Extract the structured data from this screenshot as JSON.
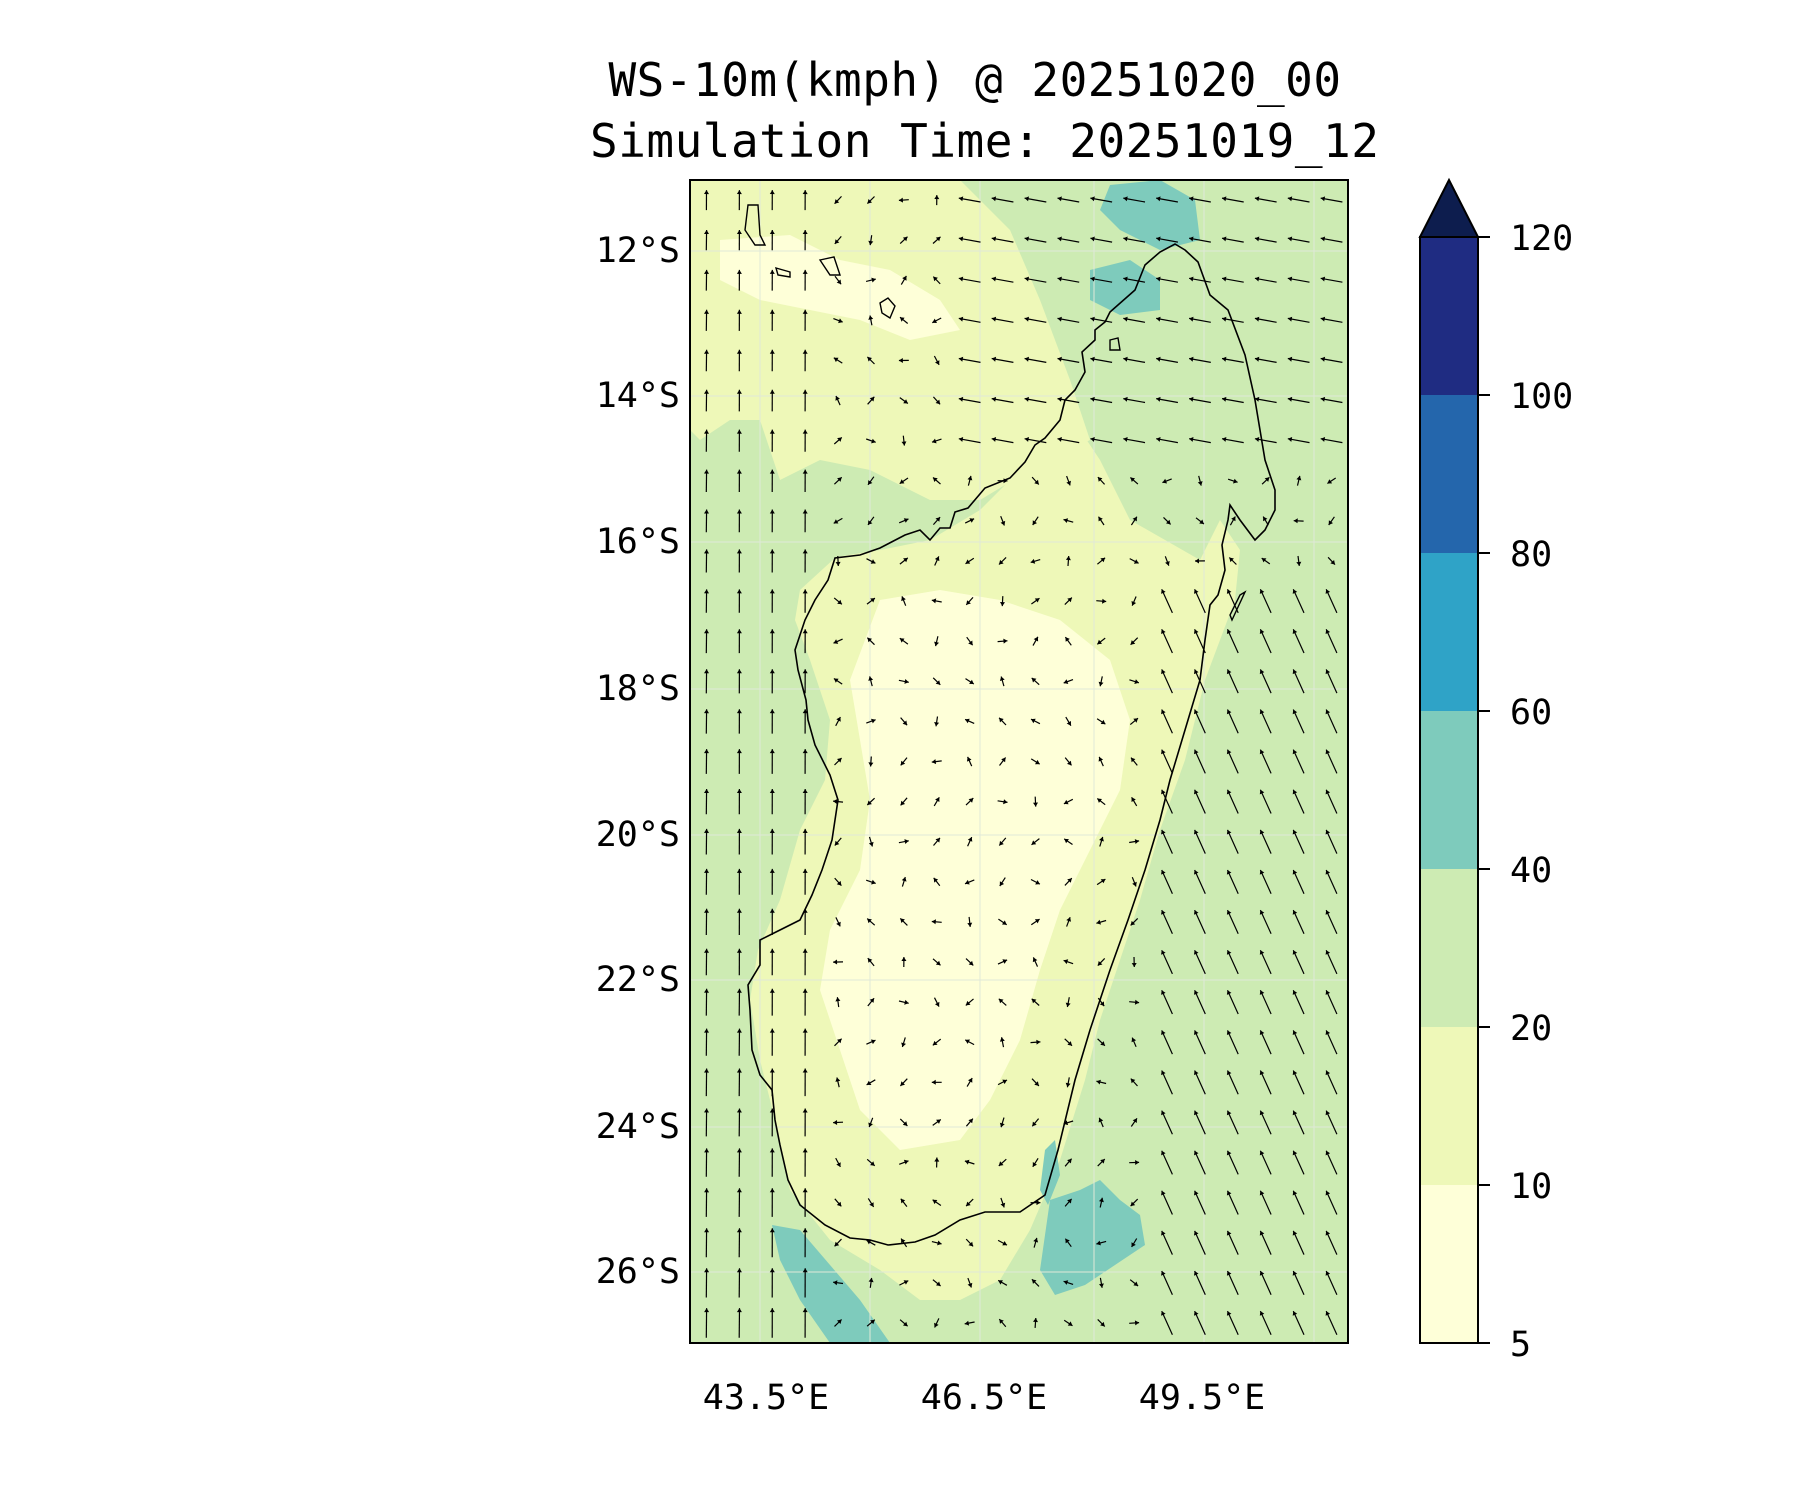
{
  "title": {
    "line1": "WS-10m(kmph) @ 20251020_00",
    "line2": "Simulation Time: 20251019_12"
  },
  "map": {
    "lat_ticks": [
      "12°S",
      "14°S",
      "16°S",
      "18°S",
      "20°S",
      "22°S",
      "24°S",
      "26°S"
    ],
    "lon_ticks": [
      "43.5°E",
      "46.5°E",
      "49.5°E"
    ],
    "lon_range": [
      42.5,
      51.5
    ],
    "lat_range": [
      -27,
      -11
    ],
    "region": "Madagascar and Mozambique Channel"
  },
  "colorbar": {
    "variable": "WS-10m(kmph)",
    "levels": [
      "5",
      "10",
      "20",
      "40",
      "60",
      "80",
      "100",
      "120"
    ],
    "colors": [
      "#feffd8",
      "#eef8b8",
      "#cdebb3",
      "#7ecbbc",
      "#2fa3c7",
      "#2466ac",
      "#1f2c82"
    ],
    "extend_color": "#0d1d4e"
  },
  "fill_colors": {
    "ocean": "#cdebb3",
    "land_low": "#eef8b8",
    "land_calm": "#feffd8",
    "strong": "#7ecbbc"
  }
}
